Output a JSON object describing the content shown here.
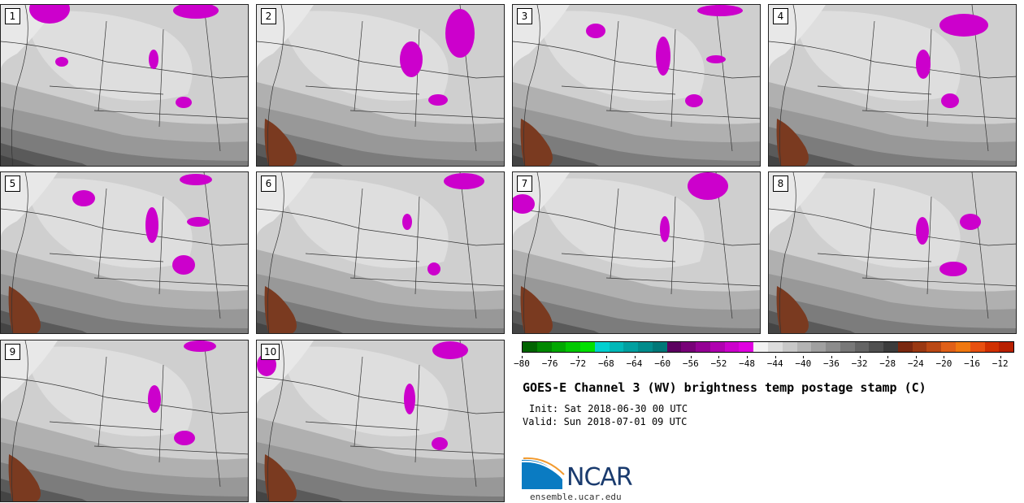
{
  "panels": [
    {
      "label": "1",
      "col": 0,
      "row": 0,
      "blobs": [
        [
          75,
          75,
          8,
          6
        ],
        [
          188,
          72,
          6,
          12
        ],
        [
          225,
          125,
          10,
          7
        ],
        [
          60,
          10,
          25,
          18
        ],
        [
          240,
          12,
          28,
          10
        ]
      ]
    },
    {
      "label": "2",
      "col": 1,
      "row": 0,
      "blobs": [
        [
          505,
          72,
          14,
          22
        ],
        [
          538,
          122,
          12,
          7
        ],
        [
          565,
          40,
          18,
          30
        ]
      ]
    },
    {
      "label": "3",
      "col": 2,
      "row": 0,
      "blobs": [
        [
          732,
          37,
          12,
          9
        ],
        [
          815,
          68,
          9,
          24
        ],
        [
          853,
          123,
          11,
          8
        ],
        [
          880,
          72,
          12,
          5
        ],
        [
          885,
          12,
          28,
          7
        ]
      ]
    },
    {
      "label": "4",
      "col": 3,
      "row": 0,
      "blobs": [
        [
          1135,
          78,
          9,
          18
        ],
        [
          1168,
          123,
          11,
          9
        ],
        [
          1185,
          30,
          30,
          14
        ]
      ]
    },
    {
      "label": "5",
      "col": 0,
      "row": 1,
      "blobs": [
        [
          102,
          243,
          14,
          10
        ],
        [
          186,
          276,
          8,
          22
        ],
        [
          225,
          325,
          14,
          12
        ],
        [
          243,
          272,
          14,
          6
        ],
        [
          240,
          220,
          20,
          7
        ]
      ]
    },
    {
      "label": "6",
      "col": 1,
      "row": 1,
      "blobs": [
        [
          500,
          272,
          6,
          10
        ],
        [
          533,
          330,
          8,
          8
        ],
        [
          570,
          222,
          25,
          10
        ]
      ]
    },
    {
      "label": "7",
      "col": 2,
      "row": 1,
      "blobs": [
        [
          817,
          281,
          6,
          16
        ],
        [
          870,
          228,
          25,
          17
        ],
        [
          642,
          250,
          15,
          12
        ]
      ]
    },
    {
      "label": "8",
      "col": 3,
      "row": 1,
      "blobs": [
        [
          1134,
          283,
          8,
          17
        ],
        [
          1172,
          330,
          17,
          9
        ],
        [
          1193,
          272,
          13,
          10
        ]
      ]
    },
    {
      "label": "9",
      "col": 0,
      "row": 2,
      "blobs": [
        [
          189,
          490,
          8,
          17
        ],
        [
          226,
          538,
          13,
          9
        ],
        [
          245,
          425,
          20,
          7
        ]
      ]
    },
    {
      "label": "10",
      "col": 1,
      "row": 2,
      "blobs": [
        [
          503,
          490,
          7,
          19
        ],
        [
          540,
          545,
          10,
          8
        ],
        [
          553,
          430,
          22,
          11
        ],
        [
          327,
          448,
          12,
          14
        ]
      ]
    }
  ],
  "colorbar": {
    "colors": [
      "#006400",
      "#008800",
      "#00a800",
      "#00c800",
      "#00e000",
      "#00d0d0",
      "#00b8b8",
      "#00a0a0",
      "#008c8c",
      "#007878",
      "#5c0060",
      "#780078",
      "#940094",
      "#b000b0",
      "#cc00cc",
      "#e000e0",
      "#f2f2f2",
      "#dcdcdc",
      "#c8c8c8",
      "#b4b4b4",
      "#a0a0a0",
      "#8c8c8c",
      "#787878",
      "#646464",
      "#505050",
      "#3c3c3c",
      "#7a2810",
      "#9a3812",
      "#ba4814",
      "#e06018",
      "#f07810",
      "#e85010",
      "#d03000",
      "#b82000"
    ],
    "min": -80,
    "max": -10,
    "ticks": [
      "−80",
      "−76",
      "−72",
      "−68",
      "−64",
      "−60",
      "−56",
      "−52",
      "−48",
      "−44",
      "−40",
      "−36",
      "−32",
      "−28",
      "−24",
      "−20",
      "−16",
      "−12"
    ],
    "tick_values": [
      -80,
      -76,
      -72,
      -68,
      -64,
      -60,
      -56,
      -52,
      -48,
      -44,
      -40,
      -36,
      -32,
      -28,
      -24,
      -20,
      -16,
      -12
    ]
  },
  "title": "GOES-E Channel 3 (WV) brightness temp postage stamp (C)",
  "init": "Init: Sat 2018-06-30 00 UTC",
  "valid": "Valid: Sun 2018-07-01 09 UTC",
  "logo_text": "NCAR",
  "site": "ensemble.ucar.edu"
}
